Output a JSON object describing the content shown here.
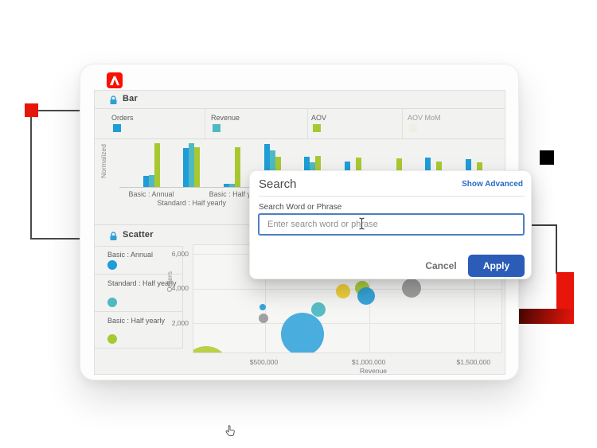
{
  "window": {
    "brand_icon": "adobe-logo"
  },
  "bar_panel": {
    "title": "Bar",
    "legend": [
      {
        "label": "Orders",
        "color": "#1e9dd8",
        "muted": false
      },
      {
        "label": "Revenue",
        "color": "#4fb9c2",
        "muted": false
      },
      {
        "label": "AOV",
        "color": "#a8c832",
        "muted": false
      },
      {
        "label": "AOV MoM",
        "color": "#efeddb",
        "muted": true
      }
    ]
  },
  "scatter_panel": {
    "title": "Scatter",
    "legend": [
      {
        "label": "Basic : Annual",
        "color": "#1e9dd8"
      },
      {
        "label": "Standard : Half yearly",
        "color": "#4fb9c2"
      },
      {
        "label": "Basic : Half yearly",
        "color": "#a8c832"
      }
    ]
  },
  "search_modal": {
    "title": "Search",
    "advanced_link": "Show Advanced",
    "field_label": "Search Word or Phrase",
    "placeholder": "Enter search word or phrase",
    "cancel_label": "Cancel",
    "apply_label": "Apply",
    "apply_color": "#2a5cb8",
    "link_color": "#2b6bc4"
  },
  "chart_data": [
    {
      "type": "bar",
      "title": "Bar",
      "ylabel": "Normalized",
      "ylim": [
        0,
        1
      ],
      "grid": false,
      "legend_position": "top",
      "categories": [
        "Basic : Annual",
        "Standard : Half yearly",
        "Basic : Half ye",
        "",
        "",
        "",
        "",
        "",
        ""
      ],
      "series": [
        {
          "name": "Orders",
          "color": "#1e9dd8",
          "values": [
            0.25,
            0.86,
            0.07,
            0.95,
            0.67,
            0.56,
            0.35,
            0.65,
            0.61
          ]
        },
        {
          "name": "Revenue",
          "color": "#4fb9c2",
          "values": [
            0.26,
            0.96,
            0.07,
            0.81,
            0.54,
            0.21,
            0.18,
            0.21,
            0.18
          ]
        },
        {
          "name": "AOV",
          "color": "#a8c832",
          "values": [
            0.96,
            0.88,
            0.88,
            0.67,
            0.68,
            0.65,
            0.63,
            0.56,
            0.54
          ]
        }
      ]
    },
    {
      "type": "scatter",
      "title": "Scatter",
      "xlabel": "Revenue",
      "ylabel": "Orders",
      "xlim": [
        160000,
        1630000
      ],
      "ylim": [
        300,
        6510
      ],
      "grid": true,
      "legend_position": "left",
      "x_ticks": [
        {
          "value": 500000,
          "label": "$500,000"
        },
        {
          "value": 1000000,
          "label": "$1,000,000"
        },
        {
          "value": 1500000,
          "label": "$1,500,000"
        }
      ],
      "y_ticks": [
        {
          "value": 2000,
          "label": "2,000"
        },
        {
          "value": 4000,
          "label": "4,000"
        },
        {
          "value": 6000,
          "label": "6,000"
        }
      ],
      "points": [
        {
          "x": 220000,
          "y": -700,
          "r": 30,
          "color": "#b5cf3f"
        },
        {
          "x": 680000,
          "y": 1360,
          "r": 27,
          "color": "#3fa9dc"
        },
        {
          "x": 490000,
          "y": 2920,
          "r": 4,
          "color": "#2d9fd8"
        },
        {
          "x": 495000,
          "y": 2280,
          "r": 6,
          "color": "#9b9b9b"
        },
        {
          "x": 755000,
          "y": 2780,
          "r": 9,
          "color": "#4fb9c2"
        },
        {
          "x": 875000,
          "y": 3840,
          "r": 9,
          "color": "#efce2f"
        },
        {
          "x": 965000,
          "y": 4050,
          "r": 9,
          "color": "#a8c832"
        },
        {
          "x": 985000,
          "y": 3560,
          "r": 11,
          "color": "#2d9fd8"
        },
        {
          "x": 1200000,
          "y": 4050,
          "r": 12,
          "color": "#9b9b9b"
        }
      ]
    }
  ]
}
